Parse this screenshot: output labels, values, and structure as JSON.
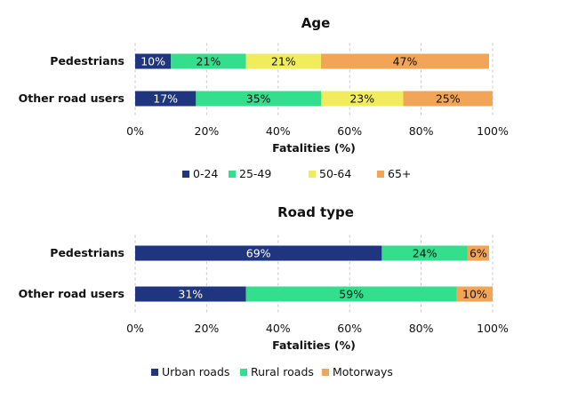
{
  "chart_data": [
    {
      "type": "bar",
      "orientation": "horizontal",
      "stacked": true,
      "title": "Age",
      "xlabel": "Fatalities (%)",
      "categories": [
        "Pedestrians",
        "Other road users"
      ],
      "xlim": [
        0,
        100
      ],
      "xticks": [
        "0%",
        "20%",
        "40%",
        "60%",
        "80%",
        "100%"
      ],
      "series": [
        {
          "name": "0-24",
          "values": [
            10,
            17
          ],
          "labels": [
            "10%",
            "17%"
          ],
          "color": "#1f3580"
        },
        {
          "name": "25-49",
          "values": [
            21,
            35
          ],
          "labels": [
            "21%",
            "35%"
          ],
          "color": "#33de8c"
        },
        {
          "name": "50-64",
          "values": [
            21,
            23
          ],
          "labels": [
            "21%",
            "23%"
          ],
          "color": "#f0ec5c"
        },
        {
          "name": "65+",
          "values": [
            47,
            25
          ],
          "labels": [
            "47%",
            "25%"
          ],
          "color": "#f2a457"
        }
      ],
      "legend_position": "bottom"
    },
    {
      "type": "bar",
      "orientation": "horizontal",
      "stacked": true,
      "title": "Road type",
      "xlabel": "Fatalities (%)",
      "categories": [
        "Pedestrians",
        "Other road users"
      ],
      "xlim": [
        0,
        100
      ],
      "xticks": [
        "0%",
        "20%",
        "40%",
        "60%",
        "80%",
        "100%"
      ],
      "series": [
        {
          "name": "Urban roads",
          "values": [
            69,
            31
          ],
          "labels": [
            "69%",
            "31%"
          ],
          "color": "#1f3580"
        },
        {
          "name": "Rural roads",
          "values": [
            24,
            59
          ],
          "labels": [
            "24%",
            "59%"
          ],
          "color": "#33de8c"
        },
        {
          "name": "Motorways",
          "values": [
            6,
            10
          ],
          "labels": [
            "6%",
            "10%"
          ],
          "color": "#f2a457"
        }
      ],
      "legend_position": "bottom"
    }
  ]
}
